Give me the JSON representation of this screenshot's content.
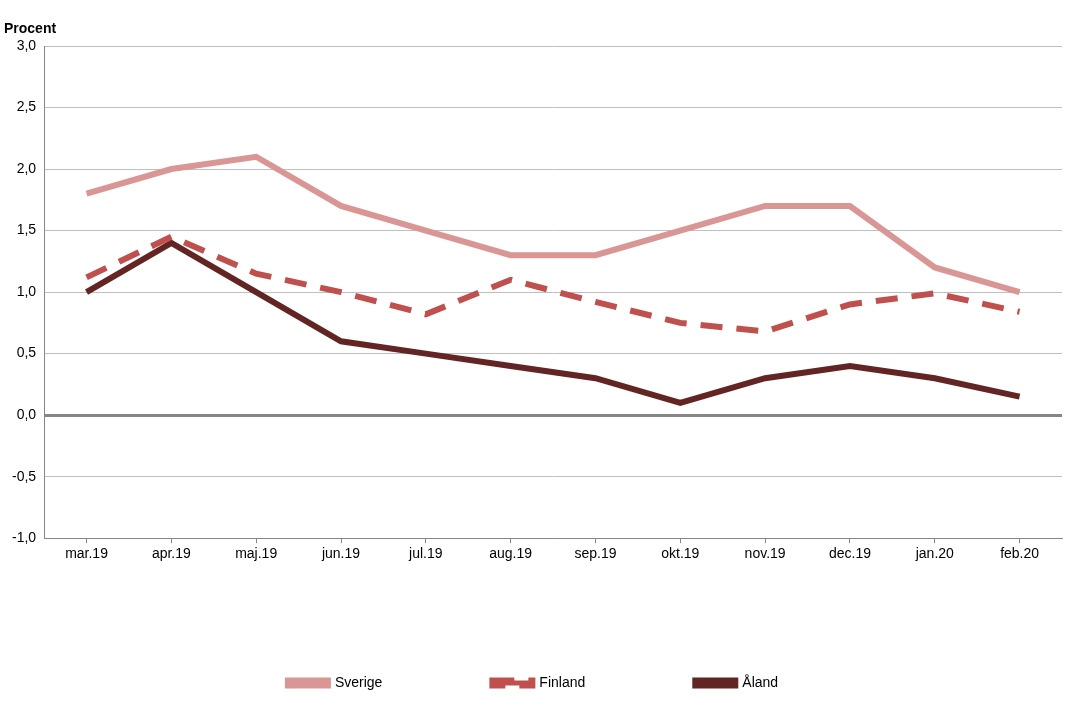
{
  "chart_data": {
    "type": "line",
    "y_label": "Procent",
    "categories": [
      "mar.19",
      "apr.19",
      "maj.19",
      "jun.19",
      "jul.19",
      "aug.19",
      "sep.19",
      "okt.19",
      "nov.19",
      "dec.19",
      "jan.20",
      "feb.20"
    ],
    "series": [
      {
        "name": "Sverige",
        "color": "#d99694",
        "line_style": "solid",
        "values": [
          1.8,
          2.0,
          2.1,
          1.7,
          1.5,
          1.3,
          1.3,
          1.5,
          1.7,
          1.7,
          1.2,
          1.0
        ]
      },
      {
        "name": "Finland",
        "color": "#c0504d",
        "line_style": "dashed",
        "values": [
          1.12,
          1.45,
          1.15,
          1.0,
          0.82,
          1.1,
          0.92,
          0.75,
          0.68,
          0.9,
          0.99,
          0.84
        ]
      },
      {
        "name": "Åland",
        "color": "#632523",
        "line_style": "solid",
        "values": [
          1.0,
          1.4,
          1.0,
          0.6,
          0.5,
          0.4,
          0.3,
          0.1,
          0.3,
          0.4,
          0.3,
          0.15
        ]
      }
    ],
    "ylim": [
      -1.0,
      3.0
    ],
    "yticks": [
      {
        "value": -1.0,
        "label": "-1,0"
      },
      {
        "value": -0.5,
        "label": "-0,5"
      },
      {
        "value": 0.0,
        "label": "0,0"
      },
      {
        "value": 0.5,
        "label": "0,5"
      },
      {
        "value": 1.0,
        "label": "1,0"
      },
      {
        "value": 1.5,
        "label": "1,5"
      },
      {
        "value": 2.0,
        "label": "2,0"
      },
      {
        "value": 2.5,
        "label": "2,5"
      },
      {
        "value": 3.0,
        "label": "3,0"
      }
    ],
    "grid": true,
    "legend": "bottom"
  }
}
